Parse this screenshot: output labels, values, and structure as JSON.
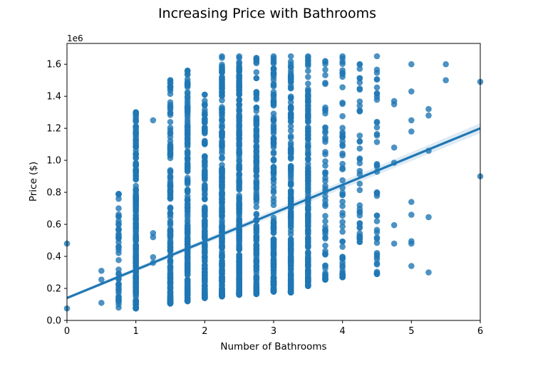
{
  "chart_data": {
    "type": "scatter",
    "title": "Increasing Price with Bathrooms",
    "xlabel": "Number of Bathrooms",
    "ylabel": "Price ($)",
    "y_offset_label": "1e6",
    "xlim": [
      0,
      6
    ],
    "ylim": [
      0,
      1730000
    ],
    "x_ticks": [
      0,
      1,
      2,
      3,
      4,
      5,
      6
    ],
    "y_ticks": [
      0,
      200000,
      400000,
      600000,
      800000,
      1000000,
      1200000,
      1400000,
      1600000
    ],
    "y_tick_labels": [
      "0.0",
      "0.2",
      "0.4",
      "0.6",
      "0.8",
      "1.0",
      "1.2",
      "1.4",
      "1.6"
    ],
    "grid": false,
    "legend": "none",
    "point_color": "#1f77b4",
    "line_color": "#1f77b4",
    "regression_line": {
      "x": [
        0,
        6
      ],
      "y": [
        140000,
        1200000
      ]
    },
    "points_summary": [
      {
        "x": 0,
        "y_min": 75000,
        "y_max": 480000,
        "count": 2
      },
      {
        "x": 0.5,
        "y_min": 110000,
        "y_max": 310000,
        "count": 3
      },
      {
        "x": 0.75,
        "y_min": 80000,
        "y_max": 790000,
        "count": 40
      },
      {
        "x": 1,
        "y_min": 75000,
        "y_max": 1300000,
        "count": 220
      },
      {
        "x": 1.25,
        "y_min": 360000,
        "y_max": 1250000,
        "count": 5
      },
      {
        "x": 1.5,
        "y_min": 105000,
        "y_max": 1500000,
        "count": 160
      },
      {
        "x": 1.75,
        "y_min": 120000,
        "y_max": 1560000,
        "count": 200
      },
      {
        "x": 2,
        "y_min": 140000,
        "y_max": 1410000,
        "count": 200
      },
      {
        "x": 2.25,
        "y_min": 150000,
        "y_max": 1650000,
        "count": 240
      },
      {
        "x": 2.5,
        "y_min": 160000,
        "y_max": 1650000,
        "count": 260
      },
      {
        "x": 2.75,
        "y_min": 165000,
        "y_max": 1640000,
        "count": 160
      },
      {
        "x": 3,
        "y_min": 180000,
        "y_max": 1650000,
        "count": 170
      },
      {
        "x": 3.25,
        "y_min": 175000,
        "y_max": 1650000,
        "count": 190
      },
      {
        "x": 3.5,
        "y_min": 215000,
        "y_max": 1650000,
        "count": 200
      },
      {
        "x": 3.75,
        "y_min": 255000,
        "y_max": 1620000,
        "count": 60
      },
      {
        "x": 4,
        "y_min": 270000,
        "y_max": 1650000,
        "count": 55
      },
      {
        "x": 4.25,
        "y_min": 490000,
        "y_max": 1600000,
        "count": 40
      },
      {
        "x": 4.5,
        "y_min": 290000,
        "y_max": 1650000,
        "count": 40
      },
      {
        "x": 4.75,
        "y_min": 480000,
        "y_max": 1370000,
        "count": 6
      },
      {
        "x": 5,
        "y_min": 340000,
        "y_max": 1600000,
        "count": 9
      },
      {
        "x": 5.25,
        "y_min": 300000,
        "y_max": 1320000,
        "count": 5
      },
      {
        "x": 5.5,
        "y_min": 1500000,
        "y_max": 1600000,
        "count": 2
      },
      {
        "x": 6,
        "y_min": 900000,
        "y_max": 1490000,
        "count": 2
      }
    ],
    "isolated_points": [
      [
        0,
        480000
      ],
      [
        0,
        75000
      ],
      [
        0.5,
        310000
      ],
      [
        0.5,
        255000
      ],
      [
        0.5,
        110000
      ],
      [
        0.75,
        790000
      ],
      [
        0.75,
        565000
      ],
      [
        0.75,
        540000
      ],
      [
        0.75,
        520000
      ],
      [
        1,
        1300000
      ],
      [
        1,
        1295000
      ],
      [
        1.25,
        1250000
      ],
      [
        1.25,
        545000
      ],
      [
        1.25,
        520000
      ],
      [
        1.25,
        395000
      ],
      [
        1.25,
        360000
      ],
      [
        2,
        1410000
      ],
      [
        2,
        1350000
      ],
      [
        2,
        1290000
      ],
      [
        1.75,
        1560000
      ],
      [
        1.75,
        1490000
      ],
      [
        1.5,
        1500000
      ],
      [
        1.5,
        1460000
      ],
      [
        4.75,
        1370000
      ],
      [
        4.75,
        1350000
      ],
      [
        4.75,
        1080000
      ],
      [
        4.75,
        985000
      ],
      [
        4.75,
        595000
      ],
      [
        4.75,
        480000
      ],
      [
        5,
        1600000
      ],
      [
        5,
        1430000
      ],
      [
        5,
        1250000
      ],
      [
        5,
        1180000
      ],
      [
        5,
        740000
      ],
      [
        5,
        660000
      ],
      [
        5,
        495000
      ],
      [
        5,
        480000
      ],
      [
        5,
        340000
      ],
      [
        5.25,
        1320000
      ],
      [
        5.25,
        1280000
      ],
      [
        5.25,
        1060000
      ],
      [
        5.25,
        645000
      ],
      [
        5.25,
        300000
      ],
      [
        5.5,
        1600000
      ],
      [
        5.5,
        1500000
      ],
      [
        6,
        1490000
      ],
      [
        6,
        900000
      ],
      [
        4,
        270000
      ],
      [
        4,
        310000
      ],
      [
        4.5,
        290000
      ],
      [
        3.75,
        255000
      ],
      [
        3,
        180000
      ],
      [
        3.25,
        175000
      ],
      [
        4.25,
        490000
      ]
    ]
  }
}
